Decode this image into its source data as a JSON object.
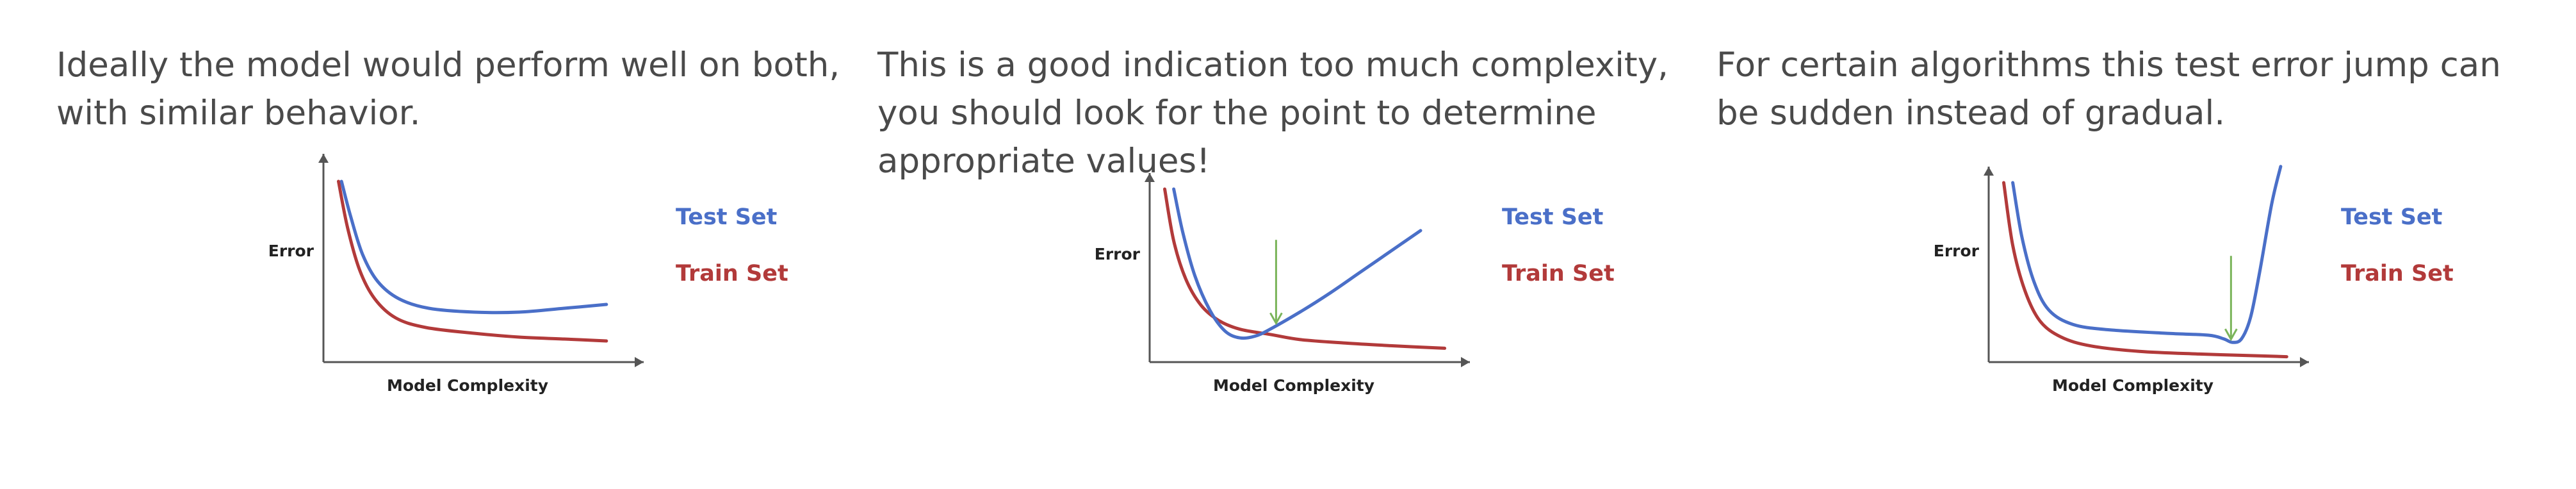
{
  "colors": {
    "test": "#4a6fc8",
    "train": "#b23a3a",
    "marker": "#7ab45a",
    "axis": "#555555",
    "text": "#4a4a4a"
  },
  "panels": [
    {
      "caption": "Ideally the model would perform well on both,\nwith similar behavior."
    },
    {
      "caption": "This is a good indication too much complexity,\nyou should look for the point to determine\nappropriate values!"
    },
    {
      "caption": "For certain algorithms this test error jump can\nbe sudden instead of gradual."
    }
  ],
  "chart_data": [
    {
      "type": "line",
      "xlabel": "Model Complexity",
      "ylabel": "Error",
      "xlim": [
        0,
        10
      ],
      "ylim": [
        0,
        10
      ],
      "legend_position": "right",
      "series": [
        {
          "name": "Test Set",
          "color": "#4a6fc8",
          "x": [
            0.6,
            0.9,
            1.3,
            1.8,
            2.5,
            3.5,
            5,
            6.5,
            8,
            9.4
          ],
          "y": [
            9.4,
            7.6,
            5.6,
            4.2,
            3.3,
            2.8,
            2.6,
            2.6,
            2.8,
            3.0
          ]
        },
        {
          "name": "Train Set",
          "color": "#b23a3a",
          "x": [
            0.5,
            0.8,
            1.2,
            1.7,
            2.4,
            3.4,
            5,
            6.5,
            8,
            9.4
          ],
          "y": [
            9.4,
            7.0,
            4.8,
            3.3,
            2.3,
            1.8,
            1.5,
            1.3,
            1.2,
            1.1
          ]
        }
      ],
      "marker_x": null
    },
    {
      "type": "line",
      "xlabel": "Model Complexity",
      "ylabel": "Error",
      "xlim": [
        0,
        10
      ],
      "ylim": [
        0,
        10
      ],
      "legend_position": "right",
      "series": [
        {
          "name": "Test Set",
          "color": "#4a6fc8",
          "x": [
            0.8,
            1.1,
            1.5,
            2.0,
            2.5,
            3.0,
            3.5,
            4.0,
            5.0,
            6.0,
            7.0,
            8.0,
            9.0
          ],
          "y": [
            10.0,
            7.5,
            5.0,
            3.0,
            1.8,
            1.4,
            1.5,
            1.9,
            2.9,
            4.0,
            5.2,
            6.4,
            7.6
          ]
        },
        {
          "name": "Train Set",
          "color": "#b23a3a",
          "x": [
            0.5,
            0.8,
            1.2,
            1.7,
            2.3,
            3.0,
            4.0,
            5.0,
            6.5,
            8.0,
            9.8
          ],
          "y": [
            10.0,
            7.0,
            4.8,
            3.3,
            2.4,
            1.9,
            1.6,
            1.3,
            1.1,
            0.95,
            0.8
          ]
        }
      ],
      "marker_x": 4.2
    },
    {
      "type": "line",
      "xlabel": "Model Complexity",
      "ylabel": "Error",
      "xlim": [
        0,
        10
      ],
      "ylim": [
        0,
        10
      ],
      "legend_position": "right",
      "series": [
        {
          "name": "Test Set",
          "color": "#4a6fc8",
          "x": [
            0.8,
            1.1,
            1.5,
            2.0,
            2.8,
            4.0,
            6.0,
            7.3,
            7.8,
            8.1,
            8.4,
            8.7,
            9.0,
            9.4,
            9.7
          ],
          "y": [
            10.0,
            7.0,
            4.5,
            2.9,
            2.1,
            1.8,
            1.6,
            1.5,
            1.3,
            1.1,
            1.3,
            2.5,
            5.0,
            8.8,
            10.9
          ]
        },
        {
          "name": "Train Set",
          "color": "#b23a3a",
          "x": [
            0.5,
            0.8,
            1.2,
            1.7,
            2.4,
            3.4,
            5.0,
            7.0,
            9.0,
            9.9
          ],
          "y": [
            10.0,
            6.5,
            4.0,
            2.3,
            1.4,
            0.9,
            0.6,
            0.45,
            0.35,
            0.3
          ]
        }
      ],
      "marker_x": 8.05
    }
  ]
}
